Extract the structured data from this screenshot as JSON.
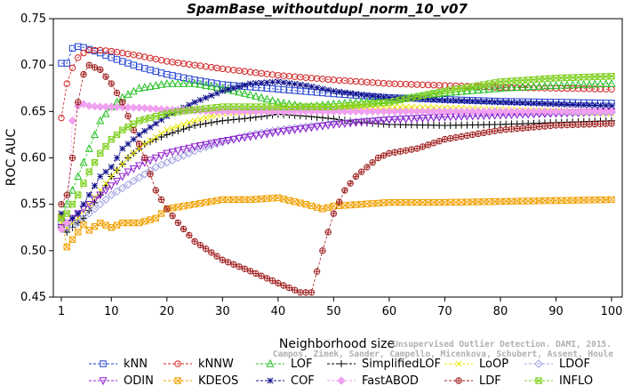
{
  "watermark": {
    "line1": "Unsupervised Outlier Detection. DAMI, 2015.",
    "line2": "Campos, Zimek, Sander, Campello, Micenkova, Schubert, Assent, Houle"
  },
  "chart_data": {
    "type": "line",
    "title": "SpamBase_withoutdupl_norm_10_v07",
    "xlabel": "Neighborhood size",
    "ylabel": "ROC AUC",
    "xlim": [
      1,
      100
    ],
    "ylim": [
      0.45,
      0.75
    ],
    "xticks": [
      1,
      10,
      20,
      30,
      40,
      50,
      60,
      70,
      80,
      90,
      100
    ],
    "yticks": [
      0.45,
      0.5,
      0.55,
      0.6,
      0.65,
      0.7,
      0.75
    ],
    "ytick_labels": [
      "0.45",
      "0.50",
      "0.55",
      "0.60",
      "0.65",
      "0.70",
      "0.75"
    ],
    "grid": false,
    "legend_position": "bottom",
    "series": [
      {
        "name": "kNN",
        "color": "#1f3fd0",
        "marker": "square",
        "points": [
          [
            1,
            0.702
          ],
          [
            2,
            0.702
          ],
          [
            3,
            0.718
          ],
          [
            4,
            0.72
          ],
          [
            5,
            0.719
          ],
          [
            6,
            0.717
          ],
          [
            8,
            0.713
          ],
          [
            10,
            0.708
          ],
          [
            15,
            0.698
          ],
          [
            20,
            0.69
          ],
          [
            25,
            0.684
          ],
          [
            30,
            0.679
          ],
          [
            40,
            0.674
          ],
          [
            50,
            0.669
          ],
          [
            60,
            0.665
          ],
          [
            70,
            0.663
          ],
          [
            80,
            0.661
          ],
          [
            90,
            0.66
          ],
          [
            100,
            0.659
          ]
        ]
      },
      {
        "name": "kNNW",
        "color": "#d02020",
        "marker": "circle",
        "points": [
          [
            1,
            0.643
          ],
          [
            2,
            0.68
          ],
          [
            3,
            0.697
          ],
          [
            4,
            0.708
          ],
          [
            5,
            0.713
          ],
          [
            6,
            0.716
          ],
          [
            8,
            0.716
          ],
          [
            10,
            0.715
          ],
          [
            15,
            0.71
          ],
          [
            20,
            0.704
          ],
          [
            30,
            0.696
          ],
          [
            40,
            0.689
          ],
          [
            50,
            0.684
          ],
          [
            60,
            0.68
          ],
          [
            70,
            0.678
          ],
          [
            80,
            0.676
          ],
          [
            90,
            0.675
          ],
          [
            100,
            0.674
          ]
        ]
      },
      {
        "name": "LOF",
        "color": "#20c020",
        "marker": "triangle-up",
        "points": [
          [
            1,
            0.535
          ],
          [
            2,
            0.55
          ],
          [
            4,
            0.58
          ],
          [
            6,
            0.61
          ],
          [
            8,
            0.64
          ],
          [
            10,
            0.655
          ],
          [
            12,
            0.665
          ],
          [
            15,
            0.675
          ],
          [
            20,
            0.68
          ],
          [
            25,
            0.68
          ],
          [
            30,
            0.675
          ],
          [
            35,
            0.668
          ],
          [
            40,
            0.66
          ],
          [
            45,
            0.655
          ],
          [
            50,
            0.658
          ],
          [
            60,
            0.662
          ],
          [
            70,
            0.67
          ],
          [
            80,
            0.675
          ],
          [
            90,
            0.678
          ],
          [
            100,
            0.68
          ]
        ]
      },
      {
        "name": "SimplifiedLOF",
        "color": "#000000",
        "marker": "plus",
        "points": [
          [
            1,
            0.525
          ],
          [
            2,
            0.52
          ],
          [
            3,
            0.525
          ],
          [
            5,
            0.535
          ],
          [
            8,
            0.56
          ],
          [
            10,
            0.58
          ],
          [
            13,
            0.6
          ],
          [
            16,
            0.615
          ],
          [
            20,
            0.625
          ],
          [
            25,
            0.635
          ],
          [
            30,
            0.64
          ],
          [
            35,
            0.643
          ],
          [
            40,
            0.647
          ],
          [
            45,
            0.645
          ],
          [
            50,
            0.642
          ],
          [
            55,
            0.638
          ],
          [
            60,
            0.636
          ],
          [
            70,
            0.635
          ],
          [
            80,
            0.636
          ],
          [
            90,
            0.638
          ],
          [
            100,
            0.64
          ]
        ]
      },
      {
        "name": "LoOP",
        "color": "#e8e800",
        "marker": "x",
        "points": [
          [
            1,
            0.53
          ],
          [
            2,
            0.525
          ],
          [
            4,
            0.535
          ],
          [
            6,
            0.55
          ],
          [
            8,
            0.565
          ],
          [
            10,
            0.58
          ],
          [
            13,
            0.6
          ],
          [
            16,
            0.615
          ],
          [
            20,
            0.63
          ],
          [
            25,
            0.64
          ],
          [
            30,
            0.648
          ],
          [
            40,
            0.652
          ],
          [
            50,
            0.655
          ],
          [
            60,
            0.655
          ],
          [
            70,
            0.654
          ],
          [
            80,
            0.652
          ],
          [
            90,
            0.65
          ],
          [
            100,
            0.648
          ]
        ]
      },
      {
        "name": "LDOF",
        "color": "#a0a0e0",
        "marker": "diamond",
        "points": [
          [
            1,
            0.53
          ],
          [
            2,
            0.525
          ],
          [
            4,
            0.53
          ],
          [
            6,
            0.54
          ],
          [
            8,
            0.55
          ],
          [
            10,
            0.56
          ],
          [
            14,
            0.575
          ],
          [
            18,
            0.59
          ],
          [
            22,
            0.6
          ],
          [
            26,
            0.61
          ],
          [
            30,
            0.617
          ],
          [
            35,
            0.625
          ],
          [
            40,
            0.63
          ],
          [
            50,
            0.637
          ],
          [
            60,
            0.642
          ],
          [
            70,
            0.645
          ],
          [
            80,
            0.647
          ],
          [
            90,
            0.648
          ],
          [
            100,
            0.649
          ]
        ]
      },
      {
        "name": "ODIN",
        "color": "#9020d0",
        "marker": "triangle-down",
        "points": [
          [
            1,
            0.525
          ],
          [
            2,
            0.53
          ],
          [
            4,
            0.54
          ],
          [
            6,
            0.55
          ],
          [
            8,
            0.56
          ],
          [
            10,
            0.57
          ],
          [
            13,
            0.585
          ],
          [
            16,
            0.595
          ],
          [
            20,
            0.605
          ],
          [
            25,
            0.612
          ],
          [
            30,
            0.618
          ],
          [
            35,
            0.623
          ],
          [
            40,
            0.628
          ],
          [
            45,
            0.632
          ],
          [
            50,
            0.636
          ],
          [
            60,
            0.641
          ],
          [
            70,
            0.644
          ],
          [
            80,
            0.646
          ],
          [
            90,
            0.648
          ],
          [
            100,
            0.65
          ]
        ]
      },
      {
        "name": "KDEOS",
        "color": "#f0a000",
        "marker": "square-x",
        "points": [
          [
            1,
            0.537
          ],
          [
            2,
            0.504
          ],
          [
            3,
            0.512
          ],
          [
            4,
            0.52
          ],
          [
            5,
            0.528
          ],
          [
            6,
            0.522
          ],
          [
            8,
            0.53
          ],
          [
            10,
            0.525
          ],
          [
            12,
            0.53
          ],
          [
            15,
            0.53
          ],
          [
            18,
            0.535
          ],
          [
            20,
            0.545
          ],
          [
            25,
            0.55
          ],
          [
            30,
            0.555
          ],
          [
            35,
            0.555
          ],
          [
            40,
            0.557
          ],
          [
            45,
            0.55
          ],
          [
            48,
            0.545
          ],
          [
            50,
            0.548
          ],
          [
            55,
            0.55
          ],
          [
            60,
            0.552
          ],
          [
            70,
            0.552
          ],
          [
            80,
            0.553
          ],
          [
            90,
            0.554
          ],
          [
            100,
            0.555
          ]
        ]
      },
      {
        "name": "COF",
        "color": "#10108a",
        "marker": "star",
        "points": [
          [
            1,
            0.54
          ],
          [
            2,
            0.53
          ],
          [
            4,
            0.54
          ],
          [
            6,
            0.56
          ],
          [
            8,
            0.58
          ],
          [
            10,
            0.59
          ],
          [
            12,
            0.61
          ],
          [
            15,
            0.625
          ],
          [
            20,
            0.645
          ],
          [
            25,
            0.66
          ],
          [
            30,
            0.672
          ],
          [
            35,
            0.68
          ],
          [
            40,
            0.682
          ],
          [
            45,
            0.678
          ],
          [
            50,
            0.672
          ],
          [
            55,
            0.668
          ],
          [
            60,
            0.665
          ],
          [
            70,
            0.662
          ],
          [
            80,
            0.66
          ],
          [
            90,
            0.658
          ],
          [
            100,
            0.656
          ]
        ]
      },
      {
        "name": "FastABOD",
        "color": "#f0a0f0",
        "marker": "diamond-filled",
        "points": [
          [
            1,
            0.523
          ],
          [
            2,
            0.53
          ],
          [
            3,
            0.64
          ],
          [
            4,
            0.656
          ],
          [
            5,
            0.658
          ],
          [
            6,
            0.656
          ],
          [
            8,
            0.655
          ],
          [
            10,
            0.655
          ],
          [
            15,
            0.654
          ],
          [
            20,
            0.652
          ],
          [
            30,
            0.65
          ],
          [
            40,
            0.65
          ],
          [
            50,
            0.65
          ],
          [
            60,
            0.65
          ],
          [
            70,
            0.65
          ],
          [
            80,
            0.65
          ],
          [
            90,
            0.65
          ],
          [
            100,
            0.65
          ]
        ]
      },
      {
        "name": "LDF",
        "color": "#a02020",
        "marker": "circle-plus",
        "points": [
          [
            1,
            0.55
          ],
          [
            2,
            0.56
          ],
          [
            3,
            0.6
          ],
          [
            4,
            0.66
          ],
          [
            5,
            0.69
          ],
          [
            6,
            0.7
          ],
          [
            8,
            0.695
          ],
          [
            10,
            0.68
          ],
          [
            12,
            0.66
          ],
          [
            14,
            0.63
          ],
          [
            16,
            0.6
          ],
          [
            18,
            0.565
          ],
          [
            20,
            0.545
          ],
          [
            22,
            0.53
          ],
          [
            25,
            0.51
          ],
          [
            30,
            0.49
          ],
          [
            35,
            0.478
          ],
          [
            40,
            0.465
          ],
          [
            42,
            0.46
          ],
          [
            44,
            0.455
          ],
          [
            46,
            0.455
          ],
          [
            48,
            0.5
          ],
          [
            50,
            0.54
          ],
          [
            52,
            0.565
          ],
          [
            54,
            0.58
          ],
          [
            56,
            0.59
          ],
          [
            58,
            0.6
          ],
          [
            60,
            0.605
          ],
          [
            65,
            0.61
          ],
          [
            70,
            0.62
          ],
          [
            75,
            0.625
          ],
          [
            80,
            0.63
          ],
          [
            90,
            0.635
          ],
          [
            100,
            0.637
          ]
        ]
      },
      {
        "name": "INFLO",
        "color": "#80d020",
        "marker": "hourglass",
        "points": [
          [
            1,
            0.535
          ],
          [
            2,
            0.54
          ],
          [
            4,
            0.56
          ],
          [
            6,
            0.585
          ],
          [
            8,
            0.605
          ],
          [
            10,
            0.62
          ],
          [
            12,
            0.63
          ],
          [
            15,
            0.64
          ],
          [
            20,
            0.648
          ],
          [
            25,
            0.652
          ],
          [
            30,
            0.655
          ],
          [
            35,
            0.655
          ],
          [
            40,
            0.655
          ],
          [
            45,
            0.655
          ],
          [
            50,
            0.655
          ],
          [
            60,
            0.66
          ],
          [
            70,
            0.672
          ],
          [
            80,
            0.682
          ],
          [
            90,
            0.686
          ],
          [
            100,
            0.688
          ]
        ]
      }
    ]
  }
}
